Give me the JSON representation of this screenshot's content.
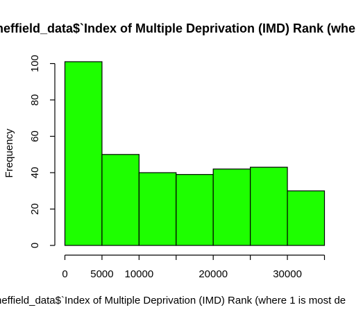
{
  "chart_data": {
    "type": "bar",
    "title": "heffield_data$`Index of Multiple Deprivation (IMD) Rank (whe",
    "xlabel": "heffield_data$`Index of Multiple Deprivation (IMD) Rank (where 1 is most de",
    "ylabel": "Frequency",
    "bins": [
      {
        "from": 0,
        "to": 5000,
        "count": 101
      },
      {
        "from": 5000,
        "to": 10000,
        "count": 50
      },
      {
        "from": 10000,
        "to": 15000,
        "count": 40
      },
      {
        "from": 15000,
        "to": 20000,
        "count": 39
      },
      {
        "from": 20000,
        "to": 25000,
        "count": 42
      },
      {
        "from": 25000,
        "to": 30000,
        "count": 43
      },
      {
        "from": 30000,
        "to": 35000,
        "count": 30
      }
    ],
    "x_ticks": [
      0,
      5000,
      10000,
      15000,
      20000,
      25000,
      30000,
      35000
    ],
    "x_tick_labels": [
      "0",
      "5000",
      "10000",
      "",
      "20000",
      "",
      "30000",
      ""
    ],
    "y_ticks": [
      0,
      20,
      40,
      60,
      80,
      100
    ],
    "y_tick_labels": [
      "0",
      "20",
      "40",
      "60",
      "80",
      "100"
    ],
    "xlim": [
      0,
      35000
    ],
    "ylim": [
      0,
      101
    ],
    "grid": false,
    "bar_color": "#1eff00",
    "bar_border_color": "#000000"
  }
}
